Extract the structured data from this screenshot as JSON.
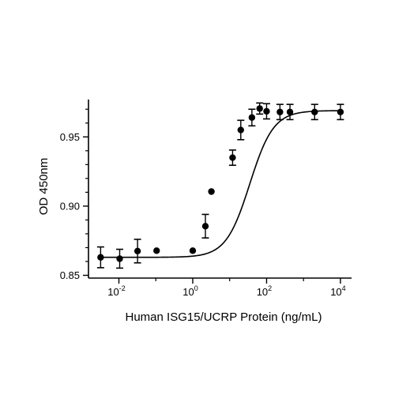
{
  "chart_data": {
    "type": "scatter",
    "title": "",
    "xlabel": "Human ISG15/UCRP Protein (ng/mL)",
    "ylabel": "OD 450nm",
    "x_scale": "log",
    "xlim": [
      0.0015,
      20000
    ],
    "ylim": [
      0.848,
      0.977
    ],
    "grid": false,
    "legend": "none",
    "x_ticks": [
      {
        "base": "10",
        "exp": "-2",
        "value": 0.01
      },
      {
        "base": "10",
        "exp": "0",
        "value": 1
      },
      {
        "base": "10",
        "exp": "2",
        "value": 100
      },
      {
        "base": "10",
        "exp": "4",
        "value": 10000
      }
    ],
    "y_ticks": [
      {
        "label": "0.85",
        "value": 0.85
      },
      {
        "label": "0.90",
        "value": 0.9
      },
      {
        "label": "0.95",
        "value": 0.95
      }
    ],
    "series": [
      {
        "x": [
          0.0032,
          0.0105,
          0.032,
          0.105,
          1.0,
          2.2,
          3.2,
          12,
          20,
          40,
          65,
          100,
          230,
          430,
          2000,
          10000
        ],
        "y": [
          0.863,
          0.862,
          0.8675,
          0.8678,
          0.8678,
          0.8855,
          0.9105,
          0.935,
          0.955,
          0.964,
          0.9705,
          0.9685,
          0.968,
          0.968,
          0.968,
          0.968
        ],
        "error": [
          0.0075,
          0.0068,
          0.0085,
          0.0,
          0.0,
          0.0085,
          0.0,
          0.0055,
          0.007,
          0.006,
          0.004,
          0.0055,
          0.0055,
          0.0055,
          0.0055,
          0.0055
        ]
      }
    ],
    "curve": {
      "bottom": 0.863,
      "top": 0.969,
      "ec50": 35,
      "hill": 1.35
    }
  },
  "colors": {
    "ink": "#000000",
    "background": "#ffffff"
  }
}
